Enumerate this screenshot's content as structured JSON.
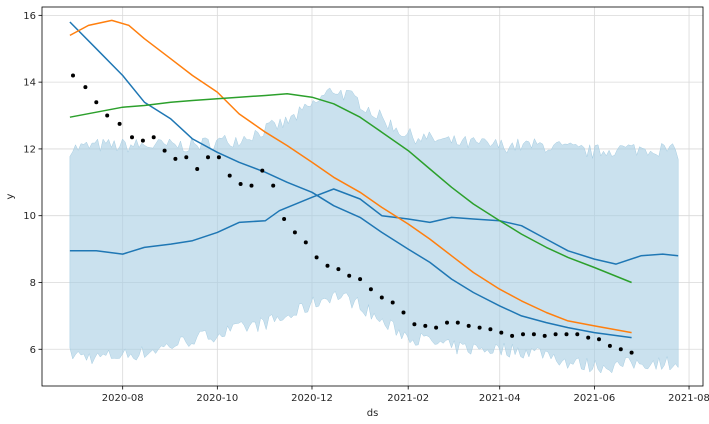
{
  "chart_data": {
    "type": "line",
    "title": "",
    "xlabel": "ds",
    "ylabel": "y",
    "x_ticks": [
      "2020-08",
      "2020-10",
      "2020-12",
      "2021-02",
      "2021-04",
      "2021-06",
      "2021-08"
    ],
    "y_ticks": [
      6,
      8,
      10,
      12,
      14,
      16
    ],
    "xlim": [
      "2020-06-10",
      "2021-08-10"
    ],
    "ylim": [
      4.9,
      16.25
    ],
    "grid": true,
    "legend": "none",
    "colors": {
      "blue": "#1f77b4",
      "orange": "#ff7f0e",
      "green": "#2ca02c",
      "band": "#a6cde2",
      "points": "#000000"
    },
    "band": {
      "x": [
        "2020-06-28",
        "2020-07-15",
        "2020-08-15",
        "2020-09-15",
        "2020-10-15",
        "2020-11-15",
        "2020-12-01",
        "2020-12-15",
        "2021-01-01",
        "2021-01-15",
        "2021-02-01",
        "2021-03-01",
        "2021-04-01",
        "2021-05-01",
        "2021-05-15",
        "2021-06-01",
        "2021-06-15",
        "2021-07-01",
        "2021-07-15",
        "2021-07-25"
      ],
      "upper": [
        12.0,
        12.1,
        12.1,
        12.1,
        12.3,
        12.8,
        13.3,
        13.8,
        13.4,
        12.9,
        12.4,
        12.2,
        12.1,
        12.1,
        12.0,
        11.9,
        12.0,
        12.0,
        12.0,
        11.9
      ],
      "lower": [
        5.85,
        5.75,
        5.9,
        6.3,
        6.6,
        6.95,
        7.35,
        7.65,
        7.35,
        6.8,
        6.4,
        6.05,
        6.0,
        5.9,
        5.6,
        5.5,
        5.5,
        5.6,
        5.6,
        5.6
      ]
    },
    "series": [
      {
        "color": "blue",
        "x": [
          "2020-06-28",
          "2020-07-15",
          "2020-08-01",
          "2020-08-15",
          "2020-09-01",
          "2020-09-15",
          "2020-10-01",
          "2020-10-15",
          "2020-11-01",
          "2020-11-15",
          "2020-12-01",
          "2020-12-15",
          "2021-01-01",
          "2021-01-15",
          "2021-02-01",
          "2021-02-15",
          "2021-03-01",
          "2021-03-15",
          "2021-04-01",
          "2021-04-15",
          "2021-05-01",
          "2021-05-15",
          "2021-06-01",
          "2021-06-25"
        ],
        "values": [
          15.8,
          15.0,
          14.2,
          13.4,
          12.9,
          12.3,
          11.9,
          11.6,
          11.3,
          11.0,
          10.7,
          10.3,
          9.95,
          9.5,
          9.0,
          8.6,
          8.1,
          7.7,
          7.3,
          7.0,
          6.8,
          6.65,
          6.5,
          6.35
        ]
      },
      {
        "color": "blue",
        "x": [
          "2020-06-28",
          "2020-07-15",
          "2020-08-01",
          "2020-08-15",
          "2020-09-01",
          "2020-09-15",
          "2020-10-01",
          "2020-10-15",
          "2020-11-01",
          "2020-11-10",
          "2020-12-01",
          "2020-12-15",
          "2021-01-01",
          "2021-01-15",
          "2021-02-01",
          "2021-02-15",
          "2021-03-01",
          "2021-03-15",
          "2021-04-01",
          "2021-04-15",
          "2021-05-01",
          "2021-05-15",
          "2021-06-01",
          "2021-06-15",
          "2021-07-01",
          "2021-07-15",
          "2021-07-25"
        ],
        "values": [
          8.95,
          8.95,
          8.85,
          9.05,
          9.15,
          9.25,
          9.5,
          9.8,
          9.85,
          10.15,
          10.55,
          10.8,
          10.5,
          10.0,
          9.9,
          9.8,
          9.95,
          9.9,
          9.85,
          9.7,
          9.3,
          8.95,
          8.7,
          8.55,
          8.8,
          8.85,
          8.8
        ]
      },
      {
        "color": "orange",
        "x": [
          "2020-06-28",
          "2020-07-10",
          "2020-07-25",
          "2020-08-05",
          "2020-08-15",
          "2020-09-01",
          "2020-09-15",
          "2020-10-01",
          "2020-10-15",
          "2020-11-01",
          "2020-11-15",
          "2020-12-01",
          "2020-12-15",
          "2021-01-01",
          "2021-01-15",
          "2021-02-01",
          "2021-02-15",
          "2021-03-01",
          "2021-03-15",
          "2021-04-01",
          "2021-04-15",
          "2021-05-01",
          "2021-05-15",
          "2021-06-01",
          "2021-06-25"
        ],
        "values": [
          15.4,
          15.7,
          15.85,
          15.7,
          15.3,
          14.7,
          14.2,
          13.7,
          13.05,
          12.5,
          12.1,
          11.6,
          11.15,
          10.7,
          10.25,
          9.75,
          9.3,
          8.8,
          8.3,
          7.8,
          7.45,
          7.1,
          6.85,
          6.7,
          6.5
        ]
      },
      {
        "color": "green",
        "x": [
          "2020-06-28",
          "2020-07-15",
          "2020-08-01",
          "2020-08-15",
          "2020-09-01",
          "2020-09-15",
          "2020-10-01",
          "2020-10-15",
          "2020-11-01",
          "2020-11-15",
          "2020-12-01",
          "2020-12-15",
          "2021-01-01",
          "2021-01-15",
          "2021-02-01",
          "2021-02-15",
          "2021-03-01",
          "2021-03-15",
          "2021-04-01",
          "2021-04-15",
          "2021-05-01",
          "2021-05-15",
          "2021-06-01",
          "2021-06-25"
        ],
        "values": [
          12.95,
          13.1,
          13.25,
          13.3,
          13.4,
          13.45,
          13.5,
          13.55,
          13.6,
          13.65,
          13.55,
          13.35,
          12.95,
          12.5,
          11.95,
          11.4,
          10.85,
          10.35,
          9.85,
          9.45,
          9.05,
          8.75,
          8.45,
          8.0
        ]
      }
    ],
    "points": {
      "x": [
        "2020-06-30",
        "2020-07-08",
        "2020-07-15",
        "2020-07-22",
        "2020-07-30",
        "2020-08-07",
        "2020-08-14",
        "2020-08-21",
        "2020-08-28",
        "2020-09-04",
        "2020-09-11",
        "2020-09-18",
        "2020-09-25",
        "2020-10-02",
        "2020-10-09",
        "2020-10-16",
        "2020-10-23",
        "2020-10-30",
        "2020-11-06",
        "2020-11-13",
        "2020-11-20",
        "2020-11-27",
        "2020-12-04",
        "2020-12-11",
        "2020-12-18",
        "2020-12-25",
        "2021-01-01",
        "2021-01-08",
        "2021-01-15",
        "2021-01-22",
        "2021-01-29",
        "2021-02-05",
        "2021-02-12",
        "2021-02-19",
        "2021-02-26",
        "2021-03-05",
        "2021-03-12",
        "2021-03-19",
        "2021-03-26",
        "2021-04-02",
        "2021-04-09",
        "2021-04-16",
        "2021-04-23",
        "2021-04-30",
        "2021-05-07",
        "2021-05-14",
        "2021-05-21",
        "2021-05-28",
        "2021-06-04",
        "2021-06-11",
        "2021-06-18",
        "2021-06-25"
      ],
      "values": [
        14.2,
        13.85,
        13.4,
        13.0,
        12.75,
        12.35,
        12.25,
        12.35,
        11.95,
        11.7,
        11.75,
        11.4,
        11.75,
        11.75,
        11.2,
        10.95,
        10.9,
        11.35,
        10.9,
        9.9,
        9.5,
        9.2,
        8.75,
        8.5,
        8.4,
        8.2,
        8.1,
        7.8,
        7.55,
        7.4,
        7.1,
        6.75,
        6.7,
        6.65,
        6.8,
        6.8,
        6.7,
        6.65,
        6.6,
        6.5,
        6.4,
        6.45,
        6.45,
        6.4,
        6.45,
        6.45,
        6.45,
        6.35,
        6.3,
        6.1,
        6.0,
        5.9
      ]
    }
  }
}
